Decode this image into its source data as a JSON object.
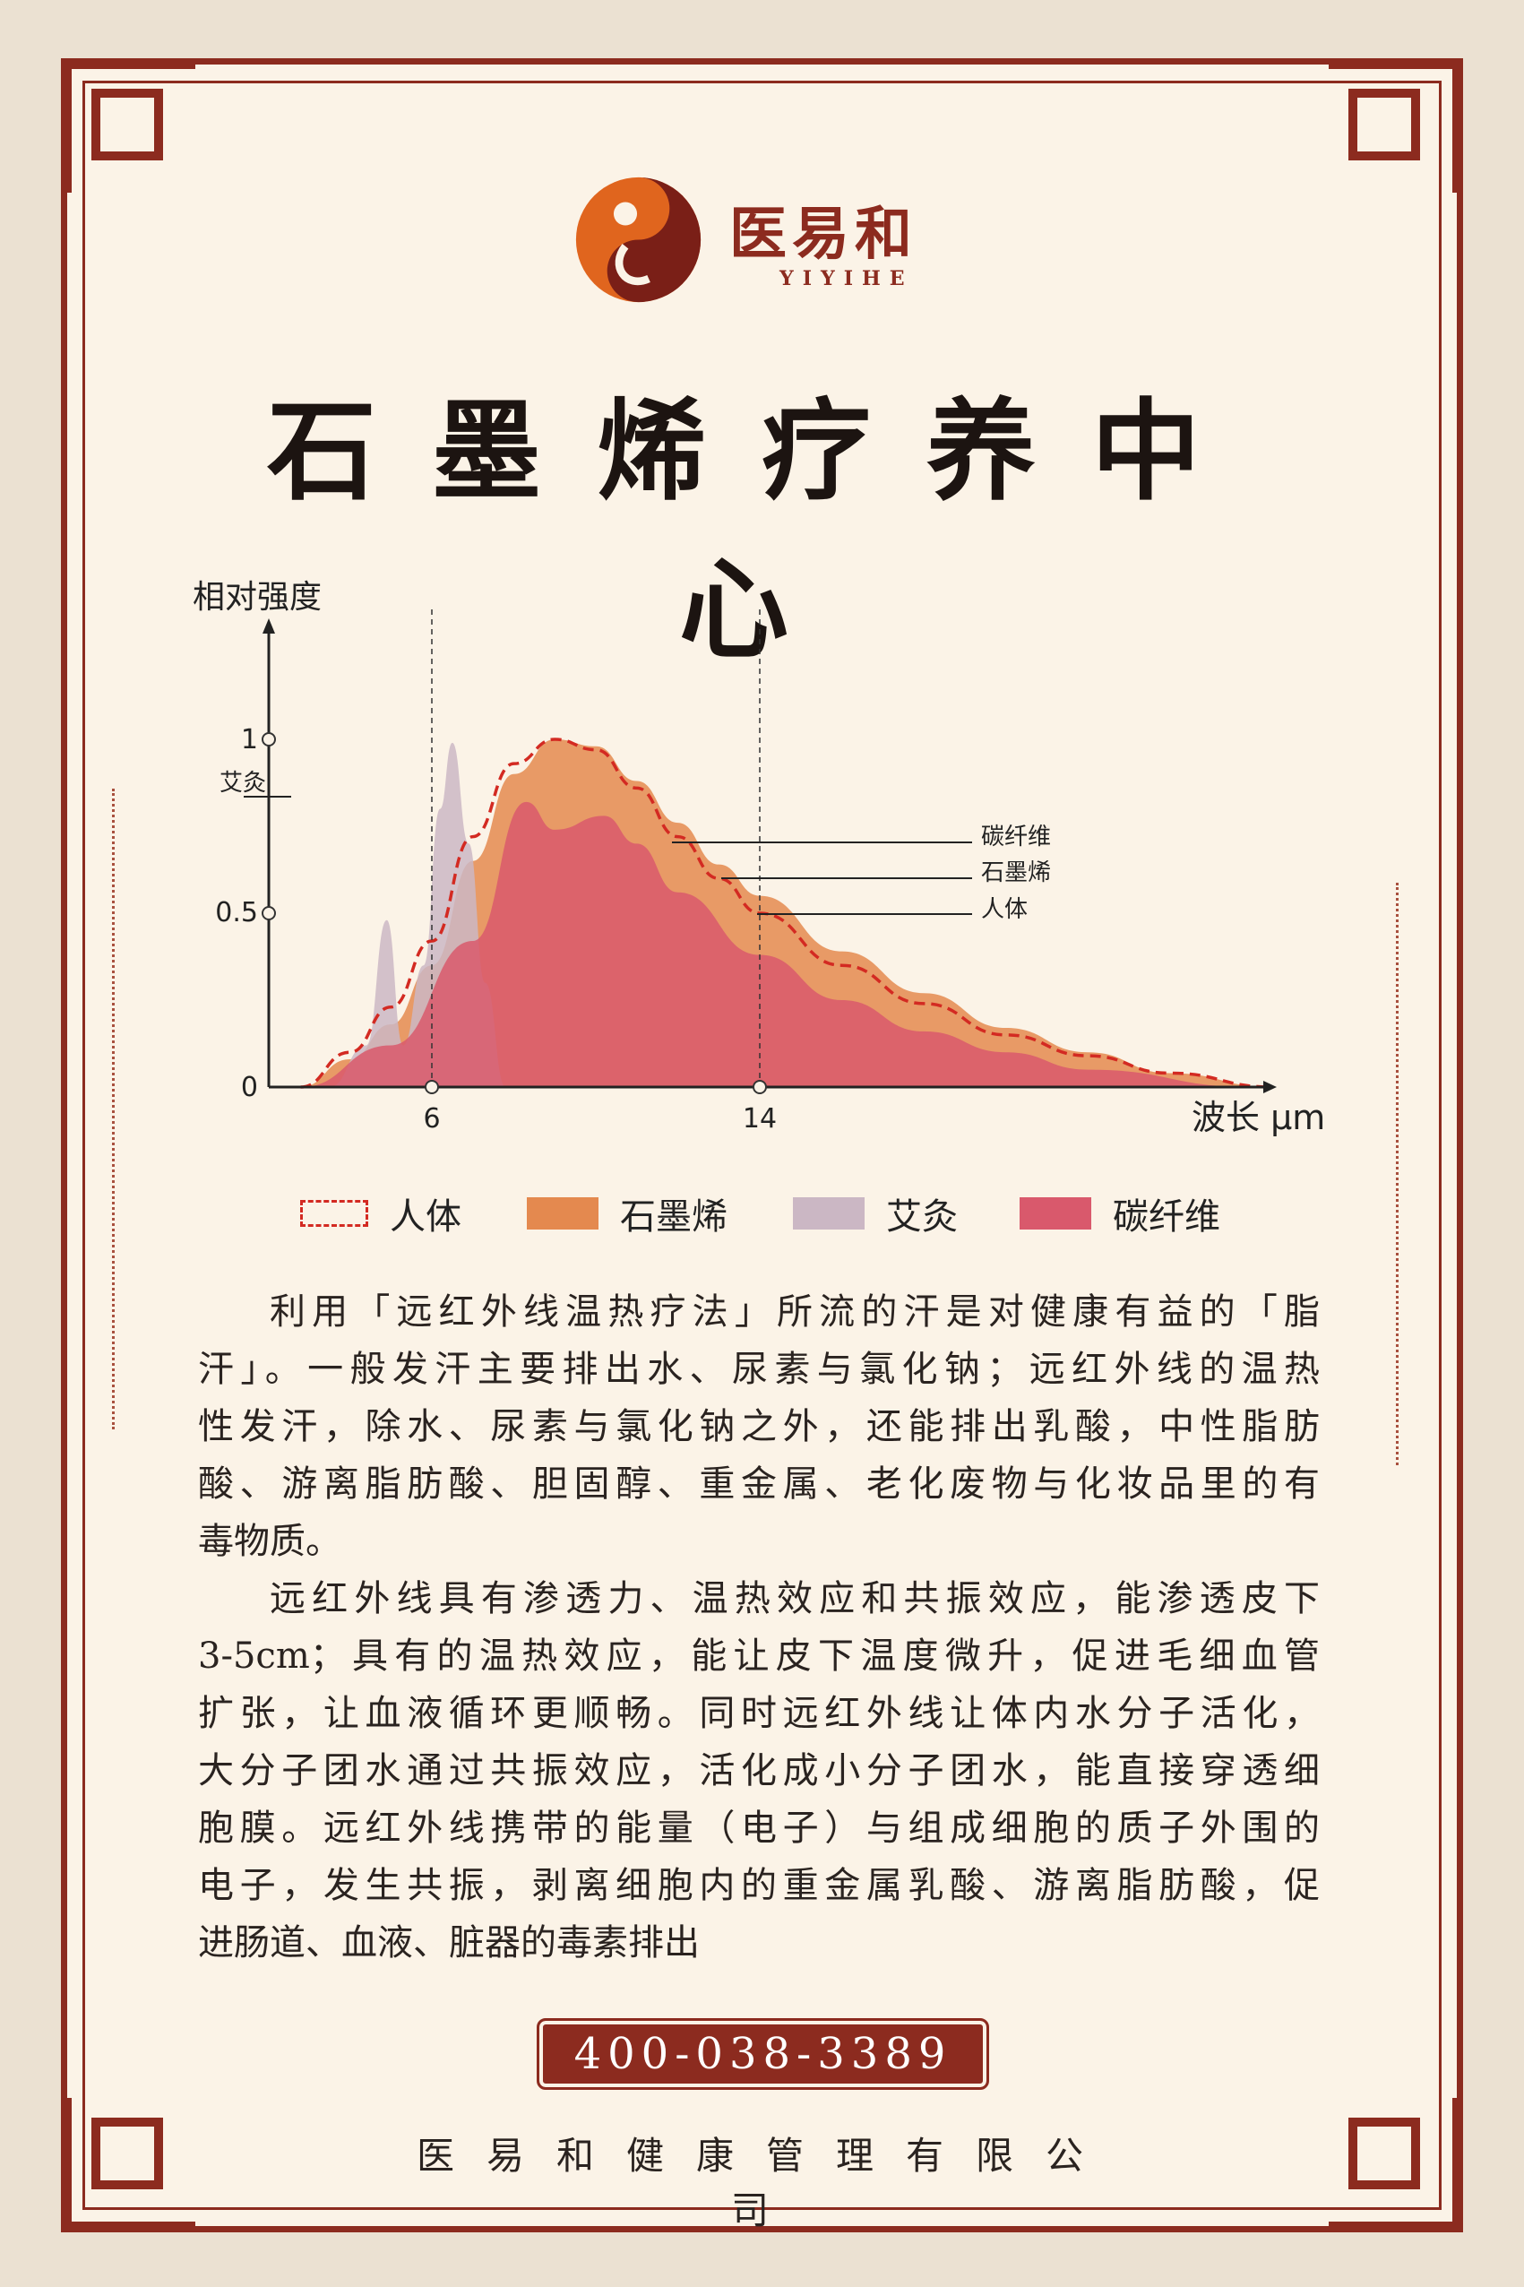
{
  "brand": {
    "name": "医易和",
    "latin": "YIYIHE",
    "colors": {
      "primary": "#8c2b1f",
      "accent": "#e0651e"
    }
  },
  "title": "石墨烯疗养中心",
  "chart_data": {
    "type": "area",
    "ylabel": "相对强度",
    "xlabel": "波长 μm",
    "x_ticks": [
      "6",
      "14"
    ],
    "y_ticks": [
      "0",
      "0.5",
      "1"
    ],
    "xlim": [
      2,
      27
    ],
    "ylim": [
      0,
      1
    ],
    "grid": false,
    "reference_lines_x": [
      6,
      14
    ],
    "legend_position": "bottom",
    "series": [
      {
        "name": "石墨烯",
        "color": "#e4894f",
        "style": "area",
        "points": [
          [
            2.8,
            0
          ],
          [
            4,
            0.08
          ],
          [
            5,
            0.18
          ],
          [
            6,
            0.35
          ],
          [
            7,
            0.65
          ],
          [
            8,
            0.9
          ],
          [
            9,
            1.0
          ],
          [
            10,
            0.98
          ],
          [
            11,
            0.88
          ],
          [
            12,
            0.76
          ],
          [
            13,
            0.64
          ],
          [
            14,
            0.55
          ],
          [
            16,
            0.39
          ],
          [
            18,
            0.27
          ],
          [
            20,
            0.17
          ],
          [
            22,
            0.1
          ],
          [
            24,
            0.04
          ],
          [
            26.5,
            0
          ]
        ]
      },
      {
        "name": "艾灸",
        "color": "#cbb7c4",
        "style": "area",
        "points": [
          [
            3.5,
            0
          ],
          [
            4.4,
            0.12
          ],
          [
            4.9,
            0.48
          ],
          [
            5.3,
            0.12
          ],
          [
            5.8,
            0.35
          ],
          [
            6.2,
            0.8
          ],
          [
            6.5,
            0.99
          ],
          [
            6.9,
            0.7
          ],
          [
            7.3,
            0.3
          ],
          [
            7.8,
            0
          ]
        ]
      },
      {
        "name": "碳纤维",
        "color": "#d9596c",
        "style": "area",
        "points": [
          [
            2.8,
            0
          ],
          [
            5,
            0.12
          ],
          [
            7,
            0.42
          ],
          [
            8.3,
            0.82
          ],
          [
            9,
            0.74
          ],
          [
            10.2,
            0.78
          ],
          [
            11,
            0.7
          ],
          [
            12,
            0.56
          ],
          [
            14,
            0.38
          ],
          [
            16,
            0.25
          ],
          [
            18,
            0.16
          ],
          [
            20,
            0.1
          ],
          [
            22,
            0.05
          ],
          [
            26,
            0
          ]
        ]
      },
      {
        "name": "人体",
        "color": "#d32a22",
        "style": "dashed-line",
        "points": [
          [
            2.8,
            0
          ],
          [
            4,
            0.1
          ],
          [
            5,
            0.23
          ],
          [
            6,
            0.42
          ],
          [
            7,
            0.72
          ],
          [
            8,
            0.93
          ],
          [
            9,
            1.0
          ],
          [
            10,
            0.97
          ],
          [
            11,
            0.86
          ],
          [
            12,
            0.72
          ],
          [
            13,
            0.6
          ],
          [
            14,
            0.5
          ],
          [
            16,
            0.35
          ],
          [
            18,
            0.24
          ],
          [
            20,
            0.15
          ],
          [
            22,
            0.09
          ],
          [
            24,
            0.04
          ],
          [
            26.5,
            0
          ]
        ]
      }
    ],
    "annotations": [
      "艾灸",
      "碳纤维",
      "石墨烯",
      "人体"
    ]
  },
  "legend": [
    "人体",
    "石墨烯",
    "艾灸",
    "碳纤维"
  ],
  "body": {
    "lines": [
      "利用「远红外线温热疗法」所流的汗是对健康有益的「脂",
      "汗」。一般发汗主要排出水、尿素与氯化钠；远红外线的温热",
      "性发汗，除水、尿素与氯化钠之外，还能排出乳酸，中性脂肪",
      "酸、游离脂肪酸、胆固醇、重金属、老化废物与化妆品里的有",
      "毒物质。",
      "远红外线具有渗透力、温热效应和共振效应，能渗透皮下",
      "3-5cm；具有的温热效应，能让皮下温度微升，促进毛细血管",
      "扩张，让血液循环更顺畅。同时远红外线让体内水分子活化，",
      "大分子团水通过共振效应，活化成小分子团水，能直接穿透细",
      "胞膜。远红外线携带的能量（电子）与组成细胞的质子外围的",
      "电子，发生共振，剥离细胞内的重金属乳酸、游离脂肪酸，促",
      "进肠道、血液、脏器的毒素排出"
    ]
  },
  "phone": "400-038-3389",
  "company": "医易和健康管理有限公司"
}
